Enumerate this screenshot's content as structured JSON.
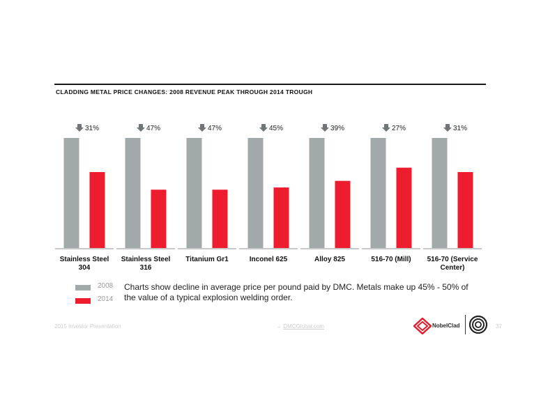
{
  "title": "CLADDING METAL PRICE CHANGES: 2008 REVENUE PEAK THROUGH 2014 TROUGH",
  "colors": {
    "series_2008": "#a2a9ab",
    "series_2014": "#ed1c2e",
    "arrow": "#6f7578",
    "baseline": "#c8c8c8"
  },
  "chart_data": {
    "type": "bar",
    "categories": [
      "Stainless Steel 304",
      "Stainless Steel 316",
      "Titanium Gr1",
      "Inconel 625",
      "Alloy 825",
      "516-70 (Mill)",
      "516-70 (Service Center)"
    ],
    "category_lines": [
      [
        "Stainless Steel",
        "304"
      ],
      [
        "Stainless Steel",
        "316"
      ],
      [
        "Titanium Gr1"
      ],
      [
        "Inconel 625"
      ],
      [
        "Alloy 825"
      ],
      [
        "516-70 (Mill)"
      ],
      [
        "516-70 (Service",
        "Center)"
      ]
    ],
    "series": [
      {
        "name": "2008",
        "values": [
          100,
          100,
          100,
          100,
          100,
          100,
          100
        ]
      },
      {
        "name": "2014",
        "values": [
          69,
          53,
          53,
          55,
          61,
          73,
          69
        ]
      }
    ],
    "change_labels": [
      "31%",
      "47%",
      "47%",
      "45%",
      "39%",
      "27%",
      "31%"
    ],
    "axes_visible": false,
    "grid": false,
    "legend_position": "bottom-left"
  },
  "legend": {
    "item_2008": "2008",
    "item_2014": "2014"
  },
  "note": "Charts show decline in average price per pound paid by DMC.  Metals make up 45% - 50% of the value of a typical explosion welding order.",
  "footer": {
    "left": "2015 Investor Presentation",
    "link_arrow": "→",
    "link": "DMCGlobal.com",
    "brand": "NobelClad",
    "page": "37"
  }
}
